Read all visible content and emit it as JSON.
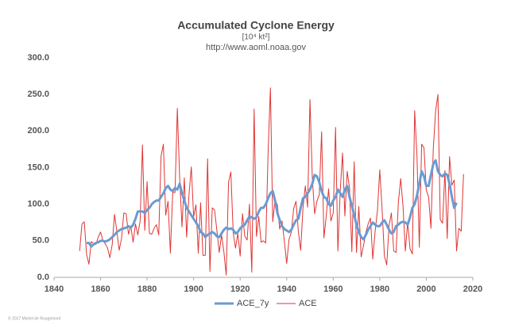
{
  "chart_data": {
    "type": "line",
    "title": "Accumulated Cyclone Energy",
    "subtitle": "[10⁴ kt²]",
    "source": "http://www.aoml.noaa.gov",
    "copyright": "© 2017 Michel de Rougemont",
    "x": [
      1851,
      1852,
      1853,
      1854,
      1855,
      1856,
      1857,
      1858,
      1859,
      1860,
      1861,
      1862,
      1863,
      1864,
      1865,
      1866,
      1867,
      1868,
      1869,
      1870,
      1871,
      1872,
      1873,
      1874,
      1875,
      1876,
      1877,
      1878,
      1879,
      1880,
      1881,
      1882,
      1883,
      1884,
      1885,
      1886,
      1887,
      1888,
      1889,
      1890,
      1891,
      1892,
      1893,
      1894,
      1895,
      1896,
      1897,
      1898,
      1899,
      1900,
      1901,
      1902,
      1903,
      1904,
      1905,
      1906,
      1907,
      1908,
      1909,
      1910,
      1911,
      1912,
      1913,
      1914,
      1915,
      1916,
      1917,
      1918,
      1919,
      1920,
      1921,
      1922,
      1923,
      1924,
      1925,
      1926,
      1927,
      1928,
      1929,
      1930,
      1931,
      1932,
      1933,
      1934,
      1935,
      1936,
      1937,
      1938,
      1939,
      1940,
      1941,
      1942,
      1943,
      1944,
      1945,
      1946,
      1947,
      1948,
      1949,
      1950,
      1951,
      1952,
      1953,
      1954,
      1955,
      1956,
      1957,
      1958,
      1959,
      1960,
      1961,
      1962,
      1963,
      1964,
      1965,
      1966,
      1967,
      1968,
      1969,
      1970,
      1971,
      1972,
      1973,
      1974,
      1975,
      1976,
      1977,
      1978,
      1979,
      1980,
      1981,
      1982,
      1983,
      1984,
      1985,
      1986,
      1987,
      1988,
      1989,
      1990,
      1991,
      1992,
      1993,
      1994,
      1995,
      1996,
      1997,
      1998,
      1999,
      2000,
      2001,
      2002,
      2003,
      2004,
      2005,
      2006,
      2007,
      2008,
      2009,
      2010,
      2011,
      2012,
      2013,
      2014,
      2015,
      2016
    ],
    "series": [
      {
        "name": "ACE_7y",
        "color": "#6a9bd1",
        "values": [
          null,
          null,
          null,
          47,
          47,
          42,
          45,
          47,
          48,
          50,
          50,
          49,
          50,
          52,
          55,
          58,
          62,
          64,
          66,
          67,
          68,
          70,
          68,
          72,
          80,
          90,
          90,
          90,
          88,
          92,
          95,
          100,
          103,
          105,
          105,
          110,
          115,
          122,
          125,
          120,
          118,
          122,
          120,
          128,
          115,
          105,
          95,
          90,
          85,
          80,
          75,
          70,
          62,
          60,
          55,
          58,
          60,
          62,
          60,
          56,
          55,
          60,
          65,
          68,
          66,
          67,
          65,
          60,
          62,
          67,
          70,
          72,
          78,
          83,
          82,
          80,
          82,
          90,
          95,
          95,
          100,
          108,
          115,
          118,
          105,
          88,
          78,
          70,
          66,
          64,
          62,
          65,
          72,
          78,
          80,
          95,
          108,
          110,
          115,
          120,
          128,
          140,
          138,
          130,
          118,
          110,
          108,
          100,
          98,
          105,
          110,
          120,
          115,
          110,
          120,
          125,
          110,
          98,
          85,
          72,
          62,
          55,
          52,
          58,
          65,
          70,
          75,
          72,
          70,
          70,
          75,
          78,
          72,
          65,
          60,
          62,
          70,
          72,
          75,
          76,
          75,
          72,
          82,
          95,
          100,
          112,
          128,
          145,
          138,
          125,
          125,
          140,
          155,
          160,
          145,
          140,
          138,
          142,
          140,
          128,
          110,
          95,
          102,
          null,
          null,
          null
        ]
      },
      {
        "name": "ACE",
        "color": "#e03535",
        "values": [
          36,
          73,
          76,
          31,
          18,
          49,
          46,
          45,
          55,
          62,
          50,
          46,
          40,
          27,
          45,
          86,
          63,
          37,
          53,
          88,
          87,
          59,
          70,
          48,
          73,
          58,
          77,
          181,
          64,
          131,
          60,
          59,
          67,
          72,
          58,
          166,
          182,
          85,
          104,
          33,
          116,
          116,
          231,
          135,
          69,
          136,
          55,
          113,
          151,
          83,
          99,
          33,
          102,
          30,
          30,
          162,
          8,
          95,
          92,
          64,
          34,
          58,
          35,
          3,
          130,
          144,
          61,
          40,
          60,
          29,
          87,
          56,
          51,
          100,
          7,
          230,
          56,
          83,
          48,
          50,
          47,
          170,
          259,
          76,
          106,
          99,
          66,
          77,
          49,
          19,
          52,
          62,
          94,
          104,
          63,
          37,
          95,
          125,
          96,
          243,
          137,
          87,
          104,
          113,
          199,
          54,
          84,
          121,
          77,
          88,
          205,
          36,
          118,
          170,
          84,
          145,
          122,
          35,
          158,
          34,
          97,
          28,
          43,
          61,
          73,
          81,
          25,
          63,
          91,
          147,
          93,
          29,
          17,
          71,
          88,
          36,
          34,
          103,
          135,
          97,
          36,
          76,
          39,
          32,
          228,
          166,
          41,
          182,
          177,
          119,
          110,
          67,
          176,
          227,
          250,
          79,
          74,
          146,
          53,
          165,
          126,
          133,
          36,
          67,
          63,
          141
        ]
      }
    ],
    "xlim": [
      1840,
      2020
    ],
    "xticks": [
      1840,
      1860,
      1880,
      1900,
      1920,
      1940,
      1960,
      1980,
      2000,
      2020
    ],
    "ylim": [
      0,
      300
    ],
    "yticks": [
      {
        "value": 0,
        "label": "0.0"
      },
      {
        "value": 50,
        "label": "50.0"
      },
      {
        "value": 100,
        "label": "100.0"
      },
      {
        "value": 150,
        "label": "150.0"
      },
      {
        "value": 200,
        "label": "200.0"
      },
      {
        "value": 250,
        "label": "250.0"
      },
      {
        "value": 300,
        "label": "300.0"
      }
    ],
    "grid": false
  }
}
